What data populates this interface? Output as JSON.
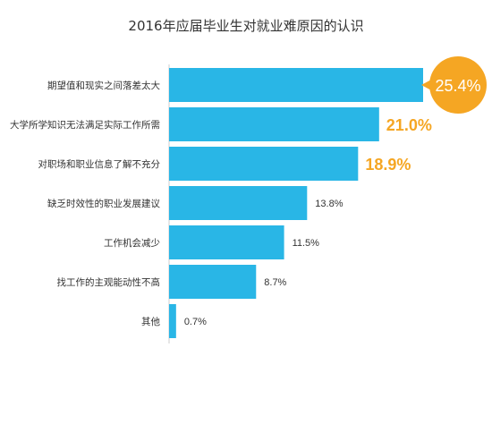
{
  "chart_data": {
    "type": "bar",
    "orientation": "horizontal",
    "title": "2016年应届毕业生对就业难原因的认识",
    "categories": [
      "期望值和现实之间落差太大",
      "大学所学知识无法满足实际工作所需",
      "对职场和职业信息了解不充分",
      "缺乏时效性的职业发展建议",
      "工作机会减少",
      "找工作的主观能动性不高",
      "其他"
    ],
    "values": [
      25.4,
      21.0,
      18.9,
      13.8,
      11.5,
      8.7,
      0.7
    ],
    "value_labels": [
      "25.4%",
      "21.0%",
      "18.9%",
      "13.8%",
      "11.5%",
      "8.7%",
      "0.7%"
    ],
    "highlight_top": 3,
    "xlim": [
      0,
      25.4
    ],
    "grid": false,
    "legend": "none",
    "colors": {
      "bar": "#29b6e6",
      "highlight_label": "#f5a623",
      "bubble": "#f5a623",
      "bubble_text": "#ffffff",
      "normal_label": "#333333",
      "category_label": "#333333",
      "axis": "#cccccc"
    }
  }
}
